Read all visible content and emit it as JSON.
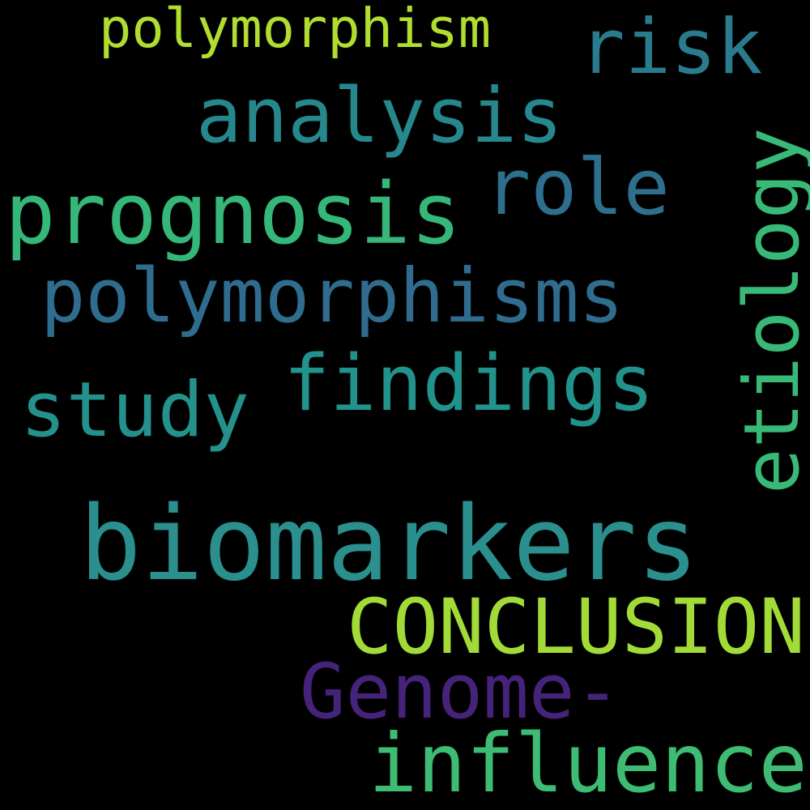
{
  "background": "#000000",
  "words": [
    {
      "text": "biomarkers",
      "color": "#2a8f8d"
    },
    {
      "text": "CONCLUSION",
      "color": "#a2db38"
    },
    {
      "text": "Genome-",
      "color": "#46237a"
    },
    {
      "text": "influence",
      "color": "#3fbc73"
    },
    {
      "text": "prognosis",
      "color": "#35b779"
    },
    {
      "text": "analysis",
      "color": "#26878d"
    },
    {
      "text": "findings",
      "color": "#21928c"
    },
    {
      "text": "polymorphisms",
      "color": "#2f6c8e"
    },
    {
      "text": "etiology",
      "color": "#38b977"
    },
    {
      "text": "study",
      "color": "#24918c"
    },
    {
      "text": "role",
      "color": "#2e6f8e"
    },
    {
      "text": "risk",
      "color": "#2a7b8e"
    },
    {
      "text": "polymorphism",
      "color": "#b0dd2f"
    }
  ]
}
